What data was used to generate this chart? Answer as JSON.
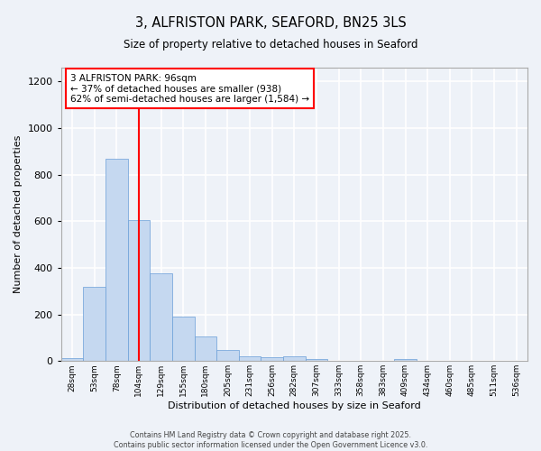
{
  "title": "3, ALFRISTON PARK, SEAFORD, BN25 3LS",
  "subtitle": "Size of property relative to detached houses in Seaford",
  "xlabel": "Distribution of detached houses by size in Seaford",
  "ylabel": "Number of detached properties",
  "bar_color": "#c5d8f0",
  "bar_edge_color": "#6a9fd8",
  "vline_x": 3,
  "vline_color": "red",
  "annotation_text": "3 ALFRISTON PARK: 96sqm\n← 37% of detached houses are smaller (938)\n62% of semi-detached houses are larger (1,584) →",
  "annotation_box_color": "red",
  "footer": "Contains HM Land Registry data © Crown copyright and database right 2025.\nContains public sector information licensed under the Open Government Licence v3.0.",
  "bin_labels": [
    "28sqm",
    "53sqm",
    "78sqm",
    "104sqm",
    "129sqm",
    "155sqm",
    "180sqm",
    "205sqm",
    "231sqm",
    "256sqm",
    "282sqm",
    "307sqm",
    "333sqm",
    "358sqm",
    "383sqm",
    "409sqm",
    "434sqm",
    "460sqm",
    "485sqm",
    "511sqm",
    "536sqm"
  ],
  "values": [
    12,
    320,
    870,
    605,
    378,
    190,
    105,
    47,
    20,
    15,
    20,
    10,
    0,
    0,
    0,
    10,
    0,
    0,
    0,
    0,
    0
  ],
  "ylim": [
    0,
    1260
  ],
  "yticks": [
    0,
    200,
    400,
    600,
    800,
    1000,
    1200
  ],
  "background_color": "#eef2f8",
  "grid_color": "white"
}
